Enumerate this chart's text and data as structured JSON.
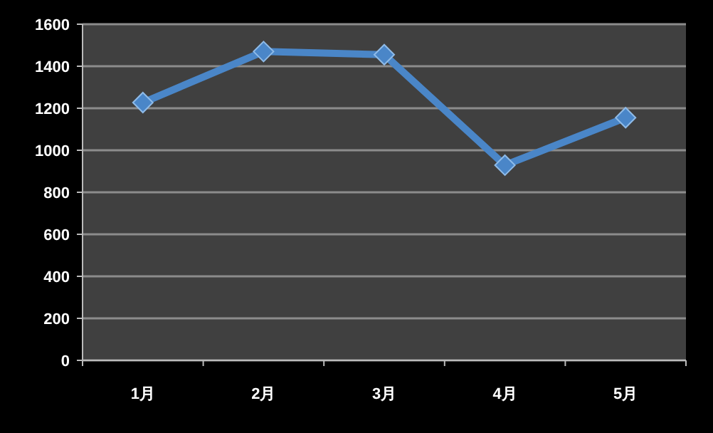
{
  "chart_data": {
    "type": "line",
    "categories": [
      "1月",
      "2月",
      "3月",
      "4月",
      "5月"
    ],
    "series": [
      {
        "color": "#4a86c8",
        "values": [
          1227,
          1470,
          1455,
          929,
          1155
        ]
      }
    ],
    "ylim": [
      0,
      1600
    ],
    "yticks": [
      0,
      200,
      400,
      600,
      800,
      1000,
      1200,
      1400,
      1600
    ],
    "grid": "y",
    "marker": "diamond",
    "line_style": "solid"
  }
}
